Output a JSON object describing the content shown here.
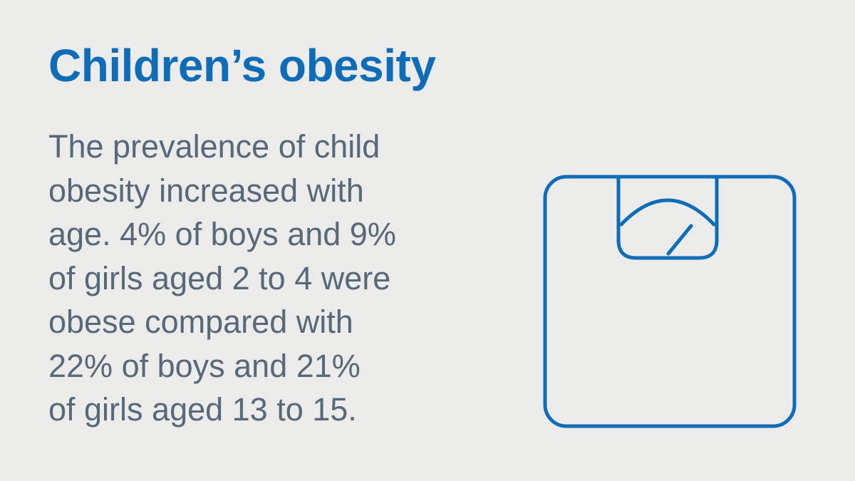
{
  "colors": {
    "background": "#ebebea",
    "title": "#0f6cb6",
    "body": "#56687a",
    "icon": "#0f6cb6"
  },
  "title": "Children’s obesity",
  "body_lines": [
    "The prevalence of child",
    "obesity increased with",
    "age. 4% of boys and 9%",
    "of girls aged 2 to 4 were",
    "obese compared with",
    "22% of boys and 21%",
    "of girls aged 13 to 15."
  ],
  "icon": "weighing-scale-icon"
}
